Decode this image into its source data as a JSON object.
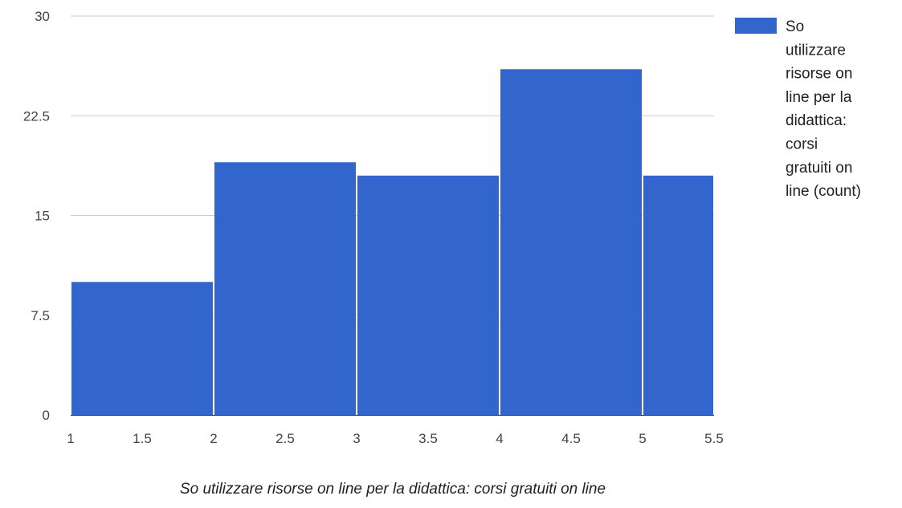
{
  "chart_data": {
    "type": "bar",
    "subtype": "histogram",
    "bins": [
      {
        "x_start": 1,
        "x_end": 2,
        "value": 10
      },
      {
        "x_start": 2,
        "x_end": 3,
        "value": 19
      },
      {
        "x_start": 3,
        "x_end": 4,
        "value": 18
      },
      {
        "x_start": 4,
        "x_end": 5,
        "value": 26
      },
      {
        "x_start": 5,
        "x_end": 5.5,
        "value": 18
      }
    ],
    "xlabel": "So utilizzare risorse on line per la didattica: corsi gratuiti on line",
    "ylabel": "",
    "xlim": [
      1,
      5.5
    ],
    "ylim": [
      0,
      30
    ],
    "x_ticks": [
      "1",
      "1.5",
      "2",
      "2.5",
      "3",
      "3.5",
      "4",
      "4.5",
      "5",
      "5.5"
    ],
    "y_ticks": [
      "0",
      "7.5",
      "15",
      "22.5",
      "30"
    ],
    "grid": true,
    "legend": {
      "position": "right",
      "entries": [
        {
          "name": "So utilizzare risorse on line per la didattica: corsi gratuiti on line (count)",
          "lines": [
            "So",
            "utilizzare",
            "risorse on",
            "line per la",
            "didattica:",
            "corsi",
            "gratuiti on",
            "line (count)"
          ],
          "color": "#3366cc"
        }
      ]
    },
    "colors": {
      "bar": "#3366cc",
      "grid": "#cccccc",
      "baseline": "#333333"
    }
  }
}
